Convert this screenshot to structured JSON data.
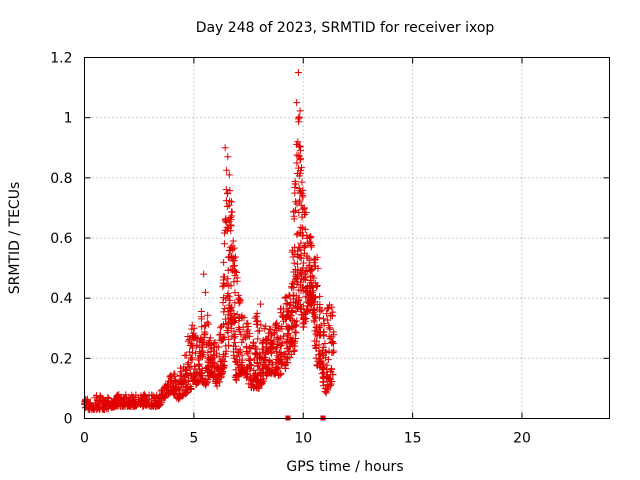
{
  "chart_data": {
    "type": "scatter",
    "title": "Day 248 of 2023, SRMTID for receiver ixop",
    "xlabel": "GPS time / hours",
    "ylabel": "SRMTID / TECUs",
    "xlim": [
      0,
      24
    ],
    "ylim": [
      0,
      1.2
    ],
    "xticks": [
      0,
      5,
      10,
      15,
      20
    ],
    "xtick_labels": [
      "0",
      "5",
      "10",
      "15",
      "20"
    ],
    "yticks": [
      0,
      0.2,
      0.4,
      0.6,
      0.8,
      1.0,
      1.2
    ],
    "ytick_labels": [
      "0",
      "0.2",
      "0.4",
      "0.6",
      "0.8",
      "1",
      "1.2"
    ],
    "grid": true,
    "marker": "+",
    "color": "#e00000",
    "series": [
      {
        "name": "SRMTID",
        "envelope": [
          [
            0.0,
            0.03,
            0.07
          ],
          [
            0.3,
            0.03,
            0.07
          ],
          [
            0.6,
            0.03,
            0.08
          ],
          [
            1.0,
            0.03,
            0.07
          ],
          [
            1.5,
            0.04,
            0.08
          ],
          [
            2.0,
            0.04,
            0.08
          ],
          [
            2.5,
            0.04,
            0.08
          ],
          [
            3.0,
            0.04,
            0.08
          ],
          [
            3.4,
            0.04,
            0.08
          ],
          [
            3.7,
            0.07,
            0.12
          ],
          [
            4.0,
            0.09,
            0.16
          ],
          [
            4.3,
            0.06,
            0.14
          ],
          [
            4.6,
            0.08,
            0.25
          ],
          [
            4.9,
            0.1,
            0.32
          ],
          [
            5.2,
            0.12,
            0.28
          ],
          [
            5.5,
            0.1,
            0.45
          ],
          [
            5.8,
            0.15,
            0.26
          ],
          [
            6.1,
            0.1,
            0.25
          ],
          [
            6.3,
            0.15,
            0.4
          ],
          [
            6.5,
            0.2,
            0.88
          ],
          [
            6.7,
            0.3,
            0.72
          ],
          [
            6.9,
            0.12,
            0.62
          ],
          [
            7.1,
            0.15,
            0.4
          ],
          [
            7.3,
            0.15,
            0.35
          ],
          [
            7.6,
            0.1,
            0.3
          ],
          [
            8.0,
            0.1,
            0.38
          ],
          [
            8.4,
            0.15,
            0.3
          ],
          [
            8.8,
            0.14,
            0.33
          ],
          [
            9.1,
            0.15,
            0.4
          ],
          [
            9.4,
            0.2,
            0.42
          ],
          [
            9.6,
            0.22,
            0.78
          ],
          [
            9.8,
            0.4,
            1.15
          ],
          [
            10.0,
            0.3,
            0.8
          ],
          [
            10.2,
            0.35,
            0.62
          ],
          [
            10.4,
            0.38,
            0.6
          ],
          [
            10.6,
            0.18,
            0.62
          ],
          [
            10.8,
            0.15,
            0.35
          ],
          [
            11.0,
            0.08,
            0.35
          ],
          [
            11.2,
            0.1,
            0.38
          ],
          [
            11.4,
            0.14,
            0.36
          ]
        ],
        "peaks": [
          [
            6.43,
            0.9
          ],
          [
            6.55,
            0.87
          ],
          [
            6.62,
            0.81
          ],
          [
            6.72,
            0.72
          ],
          [
            6.8,
            0.59
          ],
          [
            9.78,
            1.15
          ],
          [
            9.7,
            1.05
          ],
          [
            9.82,
            1.0
          ],
          [
            9.75,
            0.92
          ],
          [
            9.88,
            0.86
          ],
          [
            9.65,
            0.78
          ],
          [
            10.05,
            0.7
          ],
          [
            10.35,
            0.6
          ],
          [
            5.45,
            0.48
          ],
          [
            6.35,
            0.45
          ],
          [
            7.05,
            0.4
          ],
          [
            8.05,
            0.38
          ],
          [
            9.2,
            0.4
          ],
          [
            10.85,
            0.36
          ],
          [
            11.3,
            0.37
          ]
        ],
        "gap_markers": [
          9.3,
          10.9
        ]
      }
    ]
  }
}
